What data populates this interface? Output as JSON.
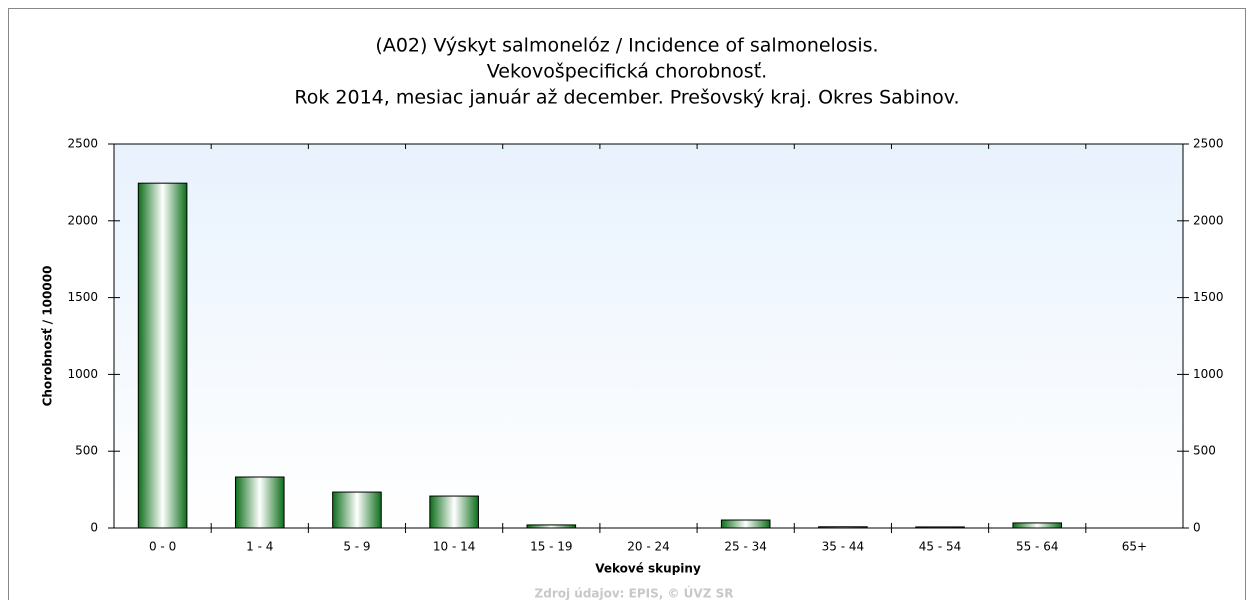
{
  "chart_data": {
    "type": "bar",
    "title": [
      "(A02) Výskyt salmonelóz / Incidence of salmonelosis.",
      "Vekovošpecifická chorobnosť.",
      "Rok 2014, mesiac január až december. Prešovský kraj. Okres Sabinov."
    ],
    "x_label": "Vekové skupiny",
    "y_label": "Chorobnosť / 100000",
    "source": "Zdroj údajov: EPIS, © ÚVZ SR",
    "categories": [
      "0 - 0",
      "1 - 4",
      "5 - 9",
      "10 - 14",
      "15 - 19",
      "20 - 24",
      "25 - 34",
      "35 - 44",
      "45 - 54",
      "55 - 64",
      "65+"
    ],
    "values": [
      2245,
      332,
      234,
      208,
      20,
      0,
      52,
      8,
      7,
      33,
      0
    ],
    "color": "#1a8a2a",
    "ylim": [
      0,
      2500
    ],
    "yticks": [
      0,
      500,
      1000,
      1500,
      2000,
      2500
    ]
  }
}
